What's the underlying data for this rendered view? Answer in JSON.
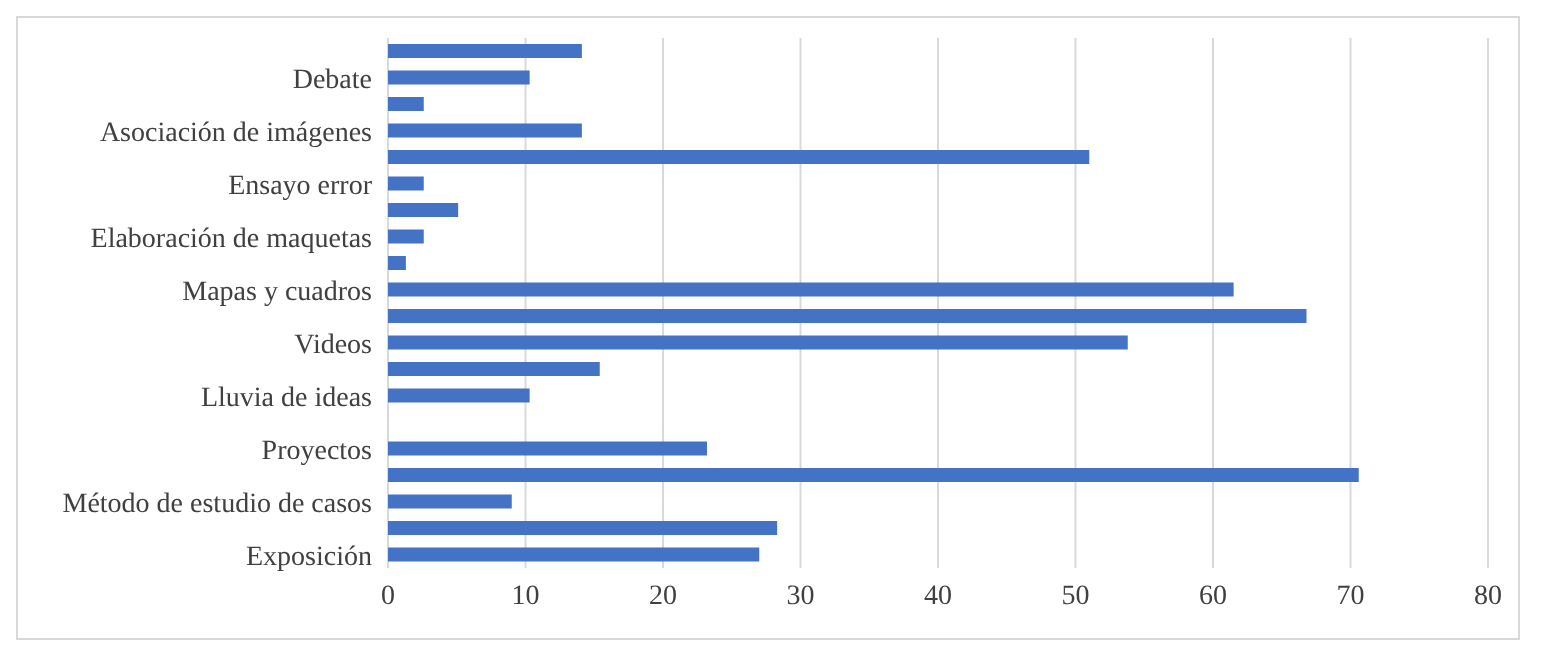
{
  "chart_data": {
    "type": "bar",
    "orientation": "horizontal",
    "categories": [
      null,
      "Debate",
      null,
      "Asociación de imágenes",
      null,
      "Ensayo error",
      null,
      "Elaboración de maquetas",
      null,
      "Mapas y cuadros",
      null,
      "Videos",
      null,
      "Lluvia de ideas",
      null,
      "Proyectos",
      null,
      "Método de estudio de casos",
      null,
      "Exposición"
    ],
    "series": [
      {
        "color": "#4472c4",
        "values": [
          14.1,
          10.3,
          2.6,
          14.1,
          51,
          2.6,
          5.1,
          2.6,
          1.3,
          61.5,
          66.8,
          53.8,
          15.4,
          10.3,
          0,
          23.2,
          70.6,
          9,
          28.3,
          27
        ]
      }
    ],
    "xlim": [
      0,
      80
    ],
    "xticks": [
      0,
      10,
      20,
      30,
      40,
      50,
      60,
      70,
      80
    ],
    "grid": "x",
    "legend": false
  }
}
